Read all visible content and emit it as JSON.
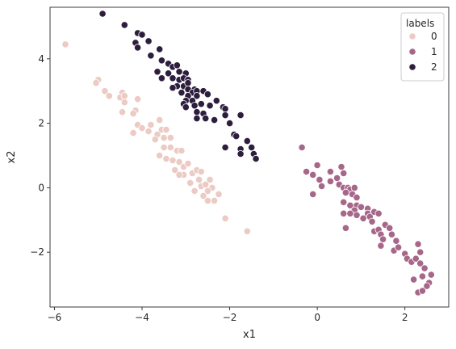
{
  "chart_data": {
    "type": "scatter",
    "xlabel": "x1",
    "ylabel": "x2",
    "xlim": [
      -6.1,
      3.0
    ],
    "ylim": [
      -3.7,
      5.6
    ],
    "xticks": [
      -6,
      -4,
      -2,
      0,
      2
    ],
    "yticks": [
      -2,
      0,
      2,
      4
    ],
    "grid": false,
    "legend": {
      "title": "labels",
      "placement": "top-right"
    },
    "series": [
      {
        "name": "0",
        "color": "#ebcbc3",
        "points": [
          [
            -5.75,
            4.45
          ],
          [
            -5.0,
            3.35
          ],
          [
            -5.05,
            3.25
          ],
          [
            -4.85,
            3.0
          ],
          [
            -4.75,
            2.85
          ],
          [
            -4.45,
            2.95
          ],
          [
            -4.5,
            2.8
          ],
          [
            -4.4,
            2.85
          ],
          [
            -4.4,
            2.65
          ],
          [
            -4.45,
            2.35
          ],
          [
            -4.1,
            2.75
          ],
          [
            -4.15,
            2.4
          ],
          [
            -4.2,
            2.3
          ],
          [
            -4.1,
            1.95
          ],
          [
            -4.2,
            1.7
          ],
          [
            -4.0,
            1.85
          ],
          [
            -3.8,
            1.95
          ],
          [
            -3.85,
            1.75
          ],
          [
            -3.6,
            2.1
          ],
          [
            -3.55,
            1.8
          ],
          [
            -3.65,
            1.65
          ],
          [
            -3.45,
            1.8
          ],
          [
            -3.7,
            1.5
          ],
          [
            -3.5,
            1.55
          ],
          [
            -3.35,
            1.55
          ],
          [
            -3.5,
            1.25
          ],
          [
            -3.35,
            1.25
          ],
          [
            -3.2,
            1.15
          ],
          [
            -3.1,
            1.15
          ],
          [
            -3.6,
            1.0
          ],
          [
            -3.45,
            0.9
          ],
          [
            -3.3,
            0.85
          ],
          [
            -3.15,
            0.8
          ],
          [
            -3.25,
            0.55
          ],
          [
            -3.05,
            0.65
          ],
          [
            -2.95,
            0.75
          ],
          [
            -3.05,
            0.4
          ],
          [
            -3.15,
            0.4
          ],
          [
            -2.85,
            0.45
          ],
          [
            -2.75,
            0.55
          ],
          [
            -2.65,
            0.5
          ],
          [
            -2.7,
            0.25
          ],
          [
            -2.9,
            0.15
          ],
          [
            -2.65,
            0.05
          ],
          [
            -2.55,
            0.1
          ],
          [
            -2.45,
            0.25
          ],
          [
            -2.4,
            0.0
          ],
          [
            -2.5,
            -0.1
          ],
          [
            -2.8,
            -0.1
          ],
          [
            -2.6,
            -0.25
          ],
          [
            -2.25,
            -0.2
          ],
          [
            -2.5,
            -0.4
          ],
          [
            -2.35,
            -0.4
          ],
          [
            -2.1,
            -0.95
          ],
          [
            -1.6,
            -1.35
          ]
        ]
      },
      {
        "name": "1",
        "color": "#a6678b",
        "points": [
          [
            -0.35,
            1.25
          ],
          [
            -0.25,
            0.5
          ],
          [
            0.0,
            0.7
          ],
          [
            -0.1,
            0.4
          ],
          [
            0.05,
            0.25
          ],
          [
            0.1,
            0.05
          ],
          [
            -0.1,
            -0.2
          ],
          [
            0.3,
            0.2
          ],
          [
            0.3,
            0.5
          ],
          [
            0.45,
            0.3
          ],
          [
            0.55,
            0.65
          ],
          [
            0.6,
            0.45
          ],
          [
            0.5,
            0.1
          ],
          [
            0.6,
            0.0
          ],
          [
            0.7,
            0.0
          ],
          [
            0.75,
            -0.05
          ],
          [
            0.65,
            -0.15
          ],
          [
            0.8,
            -0.2
          ],
          [
            0.9,
            -0.3
          ],
          [
            0.85,
            0.0
          ],
          [
            0.6,
            -0.45
          ],
          [
            0.75,
            -0.55
          ],
          [
            0.9,
            -0.55
          ],
          [
            0.85,
            -0.7
          ],
          [
            0.6,
            -0.8
          ],
          [
            0.75,
            -0.8
          ],
          [
            0.9,
            -0.85
          ],
          [
            1.0,
            -0.6
          ],
          [
            1.15,
            -0.65
          ],
          [
            1.15,
            -0.8
          ],
          [
            1.2,
            -0.9
          ],
          [
            1.05,
            -0.95
          ],
          [
            1.3,
            -0.75
          ],
          [
            1.4,
            -0.8
          ],
          [
            1.25,
            -1.05
          ],
          [
            0.65,
            -1.25
          ],
          [
            1.3,
            -1.35
          ],
          [
            1.4,
            -1.3
          ],
          [
            1.45,
            -1.45
          ],
          [
            1.55,
            -1.15
          ],
          [
            1.65,
            -1.25
          ],
          [
            1.5,
            -1.6
          ],
          [
            1.7,
            -1.45
          ],
          [
            1.8,
            -1.65
          ],
          [
            1.75,
            -1.95
          ],
          [
            1.45,
            -1.8
          ],
          [
            1.85,
            -1.85
          ],
          [
            2.0,
            -2.05
          ],
          [
            2.05,
            -2.2
          ],
          [
            2.15,
            -2.3
          ],
          [
            2.3,
            -1.75
          ],
          [
            2.35,
            -2.0
          ],
          [
            2.25,
            -2.2
          ],
          [
            2.35,
            -2.35
          ],
          [
            2.45,
            -2.5
          ],
          [
            2.2,
            -2.85
          ],
          [
            2.4,
            -2.75
          ],
          [
            2.55,
            -2.95
          ],
          [
            2.6,
            -2.7
          ],
          [
            2.5,
            -3.05
          ],
          [
            2.3,
            -3.25
          ],
          [
            2.4,
            -3.2
          ]
        ]
      },
      {
        "name": "2",
        "color": "#2d1e3e",
        "points": [
          [
            -4.9,
            5.4
          ],
          [
            -4.4,
            5.05
          ],
          [
            -4.1,
            4.8
          ],
          [
            -4.0,
            4.75
          ],
          [
            -4.15,
            4.5
          ],
          [
            -3.85,
            4.55
          ],
          [
            -4.1,
            4.35
          ],
          [
            -3.6,
            4.3
          ],
          [
            -3.55,
            3.95
          ],
          [
            -3.8,
            4.1
          ],
          [
            -3.4,
            3.85
          ],
          [
            -3.3,
            3.75
          ],
          [
            -3.2,
            3.8
          ],
          [
            -3.65,
            3.6
          ],
          [
            -3.4,
            3.55
          ],
          [
            -3.15,
            3.6
          ],
          [
            -3.0,
            3.55
          ],
          [
            -3.55,
            3.4
          ],
          [
            -3.3,
            3.4
          ],
          [
            -3.15,
            3.35
          ],
          [
            -3.05,
            3.4
          ],
          [
            -2.95,
            3.35
          ],
          [
            -3.2,
            3.15
          ],
          [
            -3.05,
            3.15
          ],
          [
            -2.95,
            3.25
          ],
          [
            -3.3,
            3.1
          ],
          [
            -2.95,
            3.05
          ],
          [
            -2.8,
            3.05
          ],
          [
            -2.85,
            2.95
          ],
          [
            -3.1,
            2.95
          ],
          [
            -2.95,
            2.85
          ],
          [
            -2.75,
            3.0
          ],
          [
            -2.6,
            3.0
          ],
          [
            -2.75,
            2.85
          ],
          [
            -3.0,
            2.7
          ],
          [
            -2.85,
            2.7
          ],
          [
            -3.05,
            2.6
          ],
          [
            -3.0,
            2.5
          ],
          [
            -2.8,
            2.55
          ],
          [
            -2.65,
            2.6
          ],
          [
            -2.5,
            2.9
          ],
          [
            -2.45,
            2.55
          ],
          [
            -2.6,
            2.3
          ],
          [
            -2.55,
            2.15
          ],
          [
            -2.75,
            2.35
          ],
          [
            -2.75,
            2.15
          ],
          [
            -2.3,
            2.7
          ],
          [
            -2.15,
            2.5
          ],
          [
            -2.1,
            2.45
          ],
          [
            -2.35,
            2.1
          ],
          [
            -2.1,
            2.25
          ],
          [
            -2.0,
            2.0
          ],
          [
            -1.9,
            1.65
          ],
          [
            -1.85,
            1.6
          ],
          [
            -1.75,
            2.25
          ],
          [
            -2.1,
            1.25
          ],
          [
            -1.6,
            1.45
          ],
          [
            -1.75,
            1.2
          ],
          [
            -1.5,
            1.25
          ],
          [
            -1.75,
            1.05
          ],
          [
            -1.45,
            1.05
          ],
          [
            -1.4,
            0.9
          ]
        ]
      }
    ]
  }
}
